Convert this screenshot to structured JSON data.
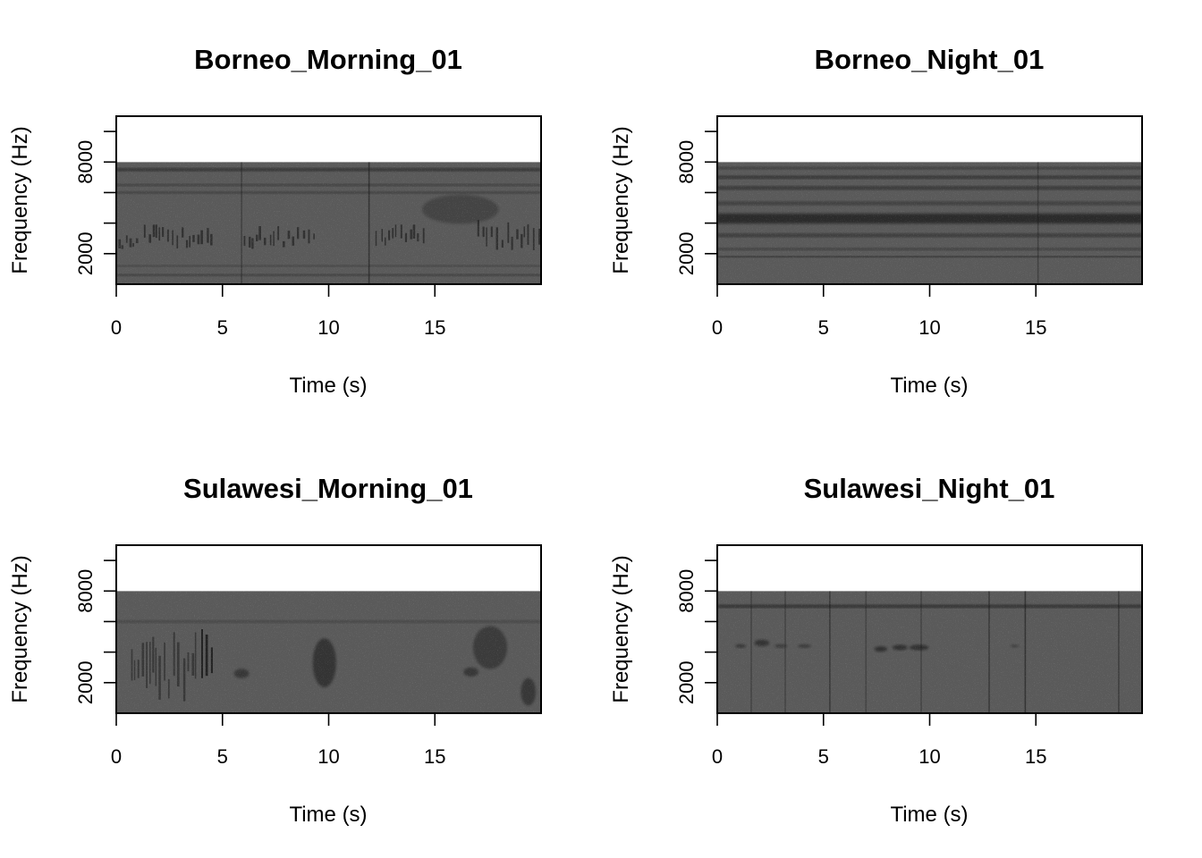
{
  "figure": {
    "background": "#ffffff",
    "spectrogram_base_color": "#5a5a5a",
    "noise_color": "#bdbdbd"
  },
  "chart_data": [
    {
      "type": "heatmap",
      "title": "Borneo_Morning_01",
      "xlabel": "Time (s)",
      "ylabel": "Frequency (Hz)",
      "xlim": [
        0,
        20
      ],
      "ylim": [
        0,
        11000
      ],
      "data_max_freq": 8000,
      "x_ticks": [
        0,
        5,
        10,
        15
      ],
      "x_tick_labels": [
        "0",
        "5",
        "10",
        "15"
      ],
      "y_ticks": [
        2000,
        4000,
        6000,
        8000,
        10000
      ],
      "y_tick_labels": [
        "2000",
        "",
        "",
        "8000",
        ""
      ],
      "grid": false,
      "legend": "none",
      "features": {
        "bands": [
          {
            "freq": 7500,
            "width": 220,
            "alpha": 0.55
          },
          {
            "freq": 6500,
            "width": 140,
            "alpha": 0.45
          },
          {
            "freq": 6000,
            "width": 160,
            "alpha": 0.4
          },
          {
            "freq": 1200,
            "width": 120,
            "alpha": 0.35
          },
          {
            "freq": 600,
            "width": 140,
            "alpha": 0.45
          }
        ],
        "vlines": [
          {
            "t": 5.9,
            "alpha": 0.35
          },
          {
            "t": 11.9,
            "alpha": 0.55
          }
        ],
        "clusters": [
          {
            "t0": 0.1,
            "t1": 1.0,
            "f0": 2300,
            "f1": 3200,
            "alpha": 0.5
          },
          {
            "t0": 1.3,
            "t1": 4.6,
            "f0": 2300,
            "f1": 3900,
            "alpha": 0.55
          },
          {
            "t0": 6.0,
            "t1": 9.3,
            "f0": 2300,
            "f1": 3800,
            "alpha": 0.55
          },
          {
            "t0": 12.2,
            "t1": 14.6,
            "f0": 2300,
            "f1": 3900,
            "alpha": 0.55
          },
          {
            "t0": 17.0,
            "t1": 19.9,
            "f0": 2200,
            "f1": 4200,
            "alpha": 0.55
          }
        ],
        "blobs": [
          {
            "t": 16.2,
            "f": 4900,
            "rt": 1.8,
            "rf": 950,
            "alpha": 0.3
          }
        ]
      }
    },
    {
      "type": "heatmap",
      "title": "Borneo_Night_01",
      "xlabel": "Time (s)",
      "ylabel": "Frequency (Hz)",
      "xlim": [
        0,
        20
      ],
      "ylim": [
        0,
        11000
      ],
      "data_max_freq": 8000,
      "x_ticks": [
        0,
        5,
        10,
        15
      ],
      "x_tick_labels": [
        "0",
        "5",
        "10",
        "15"
      ],
      "y_ticks": [
        2000,
        4000,
        6000,
        8000,
        10000
      ],
      "y_tick_labels": [
        "2000",
        "",
        "",
        "8000",
        ""
      ],
      "grid": false,
      "legend": "none",
      "features": {
        "bands": [
          {
            "freq": 7600,
            "width": 180,
            "alpha": 0.4
          },
          {
            "freq": 7000,
            "width": 220,
            "alpha": 0.55
          },
          {
            "freq": 6300,
            "width": 260,
            "alpha": 0.5
          },
          {
            "freq": 5300,
            "width": 260,
            "alpha": 0.4
          },
          {
            "freq": 4300,
            "width": 650,
            "alpha": 0.75
          },
          {
            "freq": 3200,
            "width": 260,
            "alpha": 0.45
          },
          {
            "freq": 2300,
            "width": 160,
            "alpha": 0.4
          },
          {
            "freq": 1800,
            "width": 80,
            "alpha": 0.8
          }
        ],
        "vlines": [
          {
            "t": 15.1,
            "alpha": 0.35
          }
        ],
        "clusters": [],
        "blobs": []
      }
    },
    {
      "type": "heatmap",
      "title": "Sulawesi_Morning_01",
      "xlabel": "Time (s)",
      "ylabel": "Frequency (Hz)",
      "xlim": [
        0,
        20
      ],
      "ylim": [
        0,
        11000
      ],
      "data_max_freq": 8000,
      "x_ticks": [
        0,
        5,
        10,
        15
      ],
      "x_tick_labels": [
        "0",
        "5",
        "10",
        "15"
      ],
      "y_ticks": [
        2000,
        4000,
        6000,
        8000,
        10000
      ],
      "y_tick_labels": [
        "2000",
        "",
        "",
        "8000",
        ""
      ],
      "grid": false,
      "legend": "none",
      "features": {
        "bands": [
          {
            "freq": 6000,
            "width": 200,
            "alpha": 0.25
          }
        ],
        "vlines": [],
        "clusters": [
          {
            "t0": 0.7,
            "t1": 3.8,
            "f0": 700,
            "f1": 5300,
            "alpha": 0.45
          },
          {
            "t0": 4.0,
            "t1": 4.6,
            "f0": 400,
            "f1": 5500,
            "alpha": 0.75
          }
        ],
        "blobs": [
          {
            "t": 5.9,
            "f": 2600,
            "rt": 0.35,
            "rf": 300,
            "alpha": 0.5
          },
          {
            "t": 9.8,
            "f": 3300,
            "rt": 0.55,
            "rf": 1600,
            "alpha": 0.55
          },
          {
            "t": 16.7,
            "f": 2700,
            "rt": 0.35,
            "rf": 300,
            "alpha": 0.5
          },
          {
            "t": 17.6,
            "f": 4300,
            "rt": 0.8,
            "rf": 1400,
            "alpha": 0.45
          },
          {
            "t": 19.4,
            "f": 1400,
            "rt": 0.35,
            "rf": 900,
            "alpha": 0.5
          }
        ]
      }
    },
    {
      "type": "heatmap",
      "title": "Sulawesi_Night_01",
      "xlabel": "Time (s)",
      "ylabel": "Frequency (Hz)",
      "xlim": [
        0,
        20
      ],
      "ylim": [
        0,
        11000
      ],
      "data_max_freq": 8000,
      "x_ticks": [
        0,
        5,
        10,
        15
      ],
      "x_tick_labels": [
        "0",
        "5",
        "10",
        "15"
      ],
      "y_ticks": [
        2000,
        4000,
        6000,
        8000,
        10000
      ],
      "y_tick_labels": [
        "2000",
        "",
        "",
        "8000",
        ""
      ],
      "grid": false,
      "legend": "none",
      "features": {
        "bands": [
          {
            "freq": 7000,
            "width": 220,
            "alpha": 0.6
          }
        ],
        "vlines": [
          {
            "t": 1.6,
            "alpha": 0.3
          },
          {
            "t": 3.2,
            "alpha": 0.3
          },
          {
            "t": 5.3,
            "alpha": 0.45
          },
          {
            "t": 7.0,
            "alpha": 0.3
          },
          {
            "t": 9.6,
            "alpha": 0.3
          },
          {
            "t": 12.8,
            "alpha": 0.45
          },
          {
            "t": 14.5,
            "alpha": 0.55
          },
          {
            "t": 18.9,
            "alpha": 0.4
          }
        ],
        "clusters": [],
        "blobs": [
          {
            "t": 1.1,
            "f": 4400,
            "rt": 0.25,
            "rf": 120,
            "alpha": 0.5
          },
          {
            "t": 2.1,
            "f": 4600,
            "rt": 0.35,
            "rf": 220,
            "alpha": 0.55
          },
          {
            "t": 3.0,
            "f": 4400,
            "rt": 0.3,
            "rf": 120,
            "alpha": 0.45
          },
          {
            "t": 4.1,
            "f": 4400,
            "rt": 0.3,
            "rf": 120,
            "alpha": 0.45
          },
          {
            "t": 7.7,
            "f": 4200,
            "rt": 0.3,
            "rf": 180,
            "alpha": 0.6
          },
          {
            "t": 8.6,
            "f": 4300,
            "rt": 0.35,
            "rf": 180,
            "alpha": 0.6
          },
          {
            "t": 9.5,
            "f": 4300,
            "rt": 0.45,
            "rf": 180,
            "alpha": 0.6
          },
          {
            "t": 14.0,
            "f": 4400,
            "rt": 0.2,
            "rf": 100,
            "alpha": 0.35
          }
        ]
      }
    }
  ]
}
